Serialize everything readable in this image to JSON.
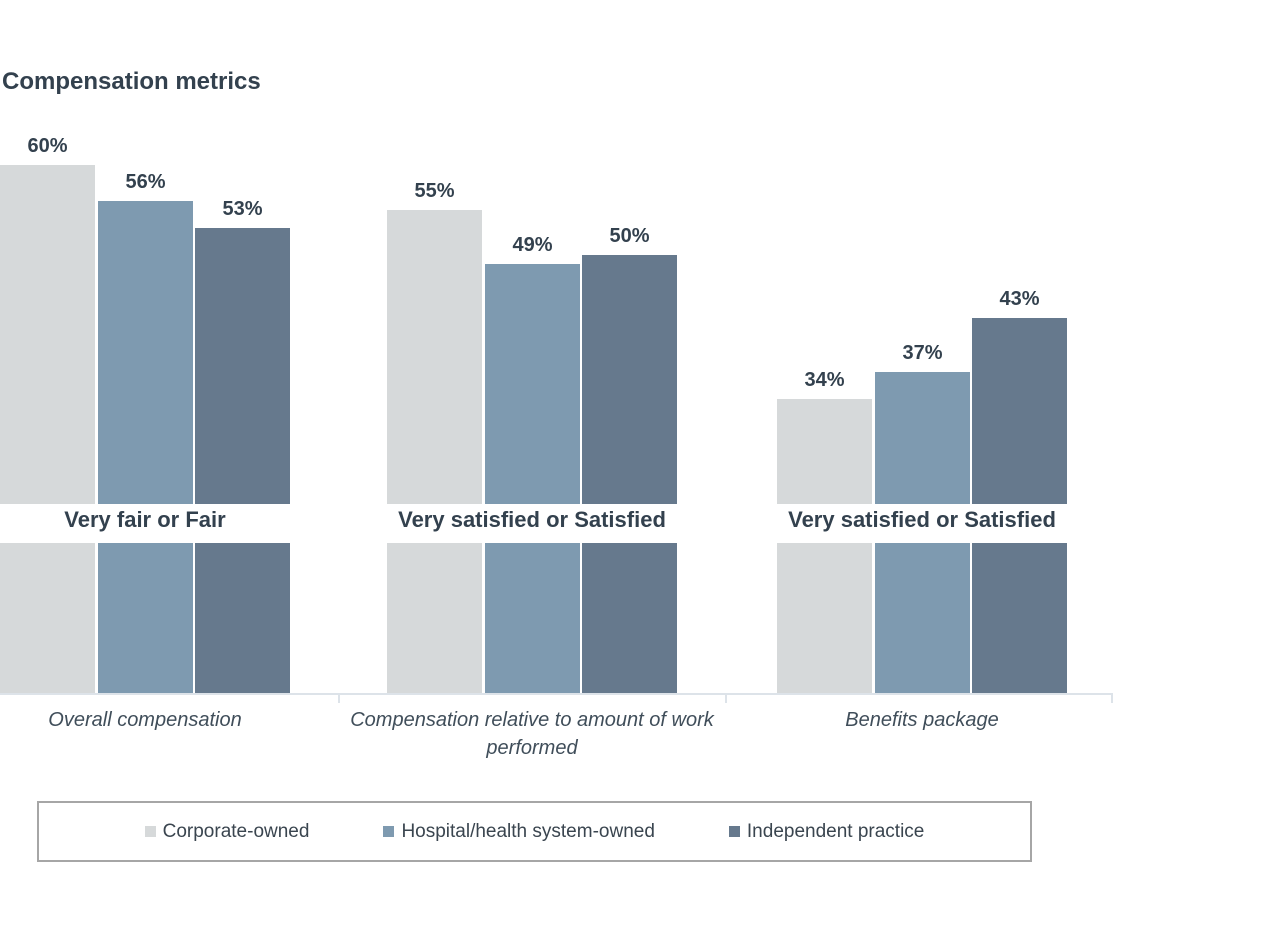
{
  "page": {
    "background": "#ffffff"
  },
  "chart_data": {
    "type": "bar",
    "title": "Compensation metrics",
    "categories": [
      "Overall compensation",
      "Compensation relative to amount of work performed",
      "Benefits package"
    ],
    "category_sublabels": [
      "Very fair or Fair",
      "Very satisfied or Satisfied",
      "Very satisfied or Satisfied"
    ],
    "series": [
      {
        "name": "Corporate-owned",
        "color": "#d6d9da",
        "values": [
          60,
          55,
          34
        ],
        "value_labels": [
          "60%",
          "55%",
          "34%"
        ]
      },
      {
        "name": "Hospital/health system-owned",
        "color": "#7e9ab0",
        "values": [
          56,
          49,
          37
        ],
        "value_labels": [
          "56%",
          "49%",
          "37%"
        ]
      },
      {
        "name": "Independent practice",
        "color": "#66798d",
        "values": [
          53,
          50,
          43
        ],
        "value_labels": [
          "53%",
          "50%",
          "43%"
        ]
      }
    ],
    "value_suffix": "%",
    "has_solid_blocks_row": true,
    "grid": false,
    "legend_position": "bottom",
    "axis_line_color": "#dde3e9",
    "text_color": "#33414e"
  }
}
